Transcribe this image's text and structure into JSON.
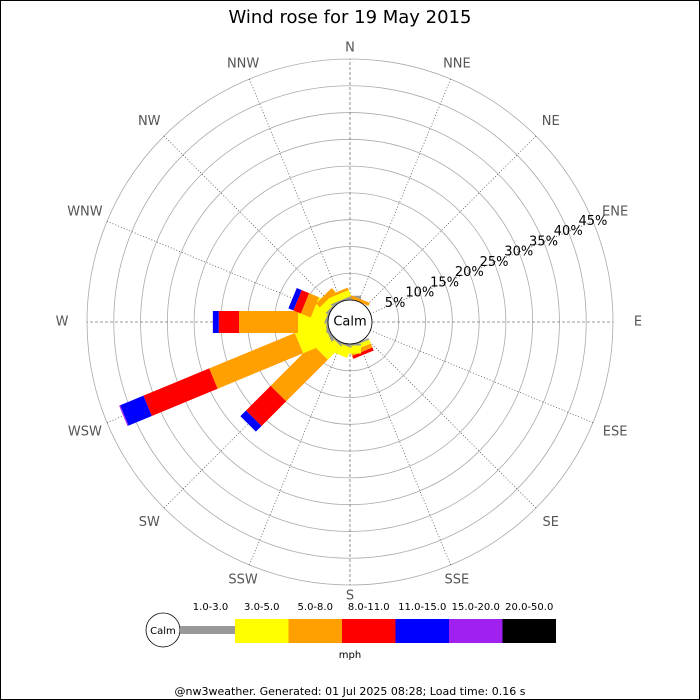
{
  "chart_data": {
    "type": "rose",
    "title": "Wind rose for 19 May 2015",
    "directions": [
      "N",
      "NNE",
      "NE",
      "ENE",
      "E",
      "ESE",
      "SE",
      "SSE",
      "S",
      "SSW",
      "SW",
      "WSW",
      "W",
      "WNW",
      "NW",
      "NNW"
    ],
    "calm_label": "Calm",
    "unit": "mph",
    "footer": "@nw3weather. Generated: 01 Jul 2025 08:28; Load time: 0.16 s",
    "ylim": [
      0,
      45
    ],
    "yticks": [
      {
        "value": 5,
        "label": "5%"
      },
      {
        "value": 10,
        "label": "10%"
      },
      {
        "value": 15,
        "label": "15%"
      },
      {
        "value": 20,
        "label": "20%"
      },
      {
        "value": 25,
        "label": "25%"
      },
      {
        "value": 30,
        "label": "30%"
      },
      {
        "value": 35,
        "label": "35%"
      },
      {
        "value": 40,
        "label": "40%"
      },
      {
        "value": 45,
        "label": "45%"
      }
    ],
    "series": [
      {
        "name": "1.0-3.0",
        "color": "#999999",
        "values": [
          0.8,
          0,
          0,
          0,
          0,
          0,
          0,
          0.3,
          0.3,
          0.3,
          0.3,
          0.5,
          0.3,
          0.3,
          0.3,
          0.3
        ]
      },
      {
        "name": "3.0-5.0",
        "color": "#ffff00",
        "values": [
          0,
          0,
          0,
          0,
          0,
          0,
          0,
          0.8,
          1.5,
          2,
          3.5,
          5.7,
          5.3,
          2.7,
          1.5,
          1.2
        ]
      },
      {
        "name": "5.0-8.0",
        "color": "#ffa000",
        "values": [
          0,
          0.6,
          0,
          0,
          0,
          0,
          0,
          0.8,
          0,
          0,
          11,
          17.3,
          11,
          2,
          1,
          0.5
        ]
      },
      {
        "name": "8.0-11.0",
        "color": "#ff0000",
        "values": [
          0,
          0,
          0,
          0,
          0,
          0,
          0,
          0.6,
          0,
          0,
          6.5,
          13.3,
          3.8,
          1.5,
          0,
          0
        ]
      },
      {
        "name": "11.0-15.0",
        "color": "#0000ff",
        "values": [
          0,
          0,
          0,
          0,
          0,
          0,
          0,
          0,
          0,
          0,
          1.5,
          4.7,
          1.1,
          1,
          0,
          0
        ]
      },
      {
        "name": "15.0-20.0",
        "color": "#a020f0",
        "values": [
          0,
          0,
          0,
          0,
          0,
          0,
          0,
          0,
          0,
          0,
          0,
          0.2,
          0,
          0,
          0,
          0
        ]
      },
      {
        "name": "20.0-50.0",
        "color": "#000000",
        "values": [
          0,
          0,
          0,
          0,
          0,
          0,
          0,
          0,
          0,
          0,
          0,
          0,
          0,
          0,
          0,
          0
        ]
      }
    ]
  }
}
